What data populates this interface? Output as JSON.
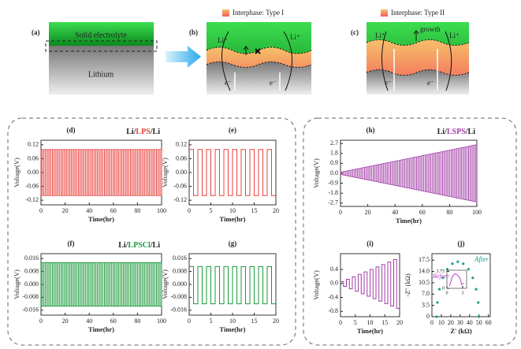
{
  "schematic": {
    "a": {
      "label": "(a)",
      "top": "Solid electrolyte",
      "bottom": "Lithium"
    },
    "b": {
      "label": "(b)",
      "legend": "Interphase: Type I",
      "ion_left": "Li⁺",
      "ion_right": "Li⁺",
      "electron_left": "e⁻",
      "electron_right": "e⁻"
    },
    "c": {
      "label": "(c)",
      "legend": "Interphase: Type II",
      "ion_left": "Li⁺",
      "ion_right": "Li⁺",
      "growth": "growth",
      "electron_left": "e⁻",
      "electron_right": "e⁻"
    }
  },
  "chart_data": [
    {
      "type": "area",
      "panel": "(d)",
      "title_parts": [
        "Li/",
        "LPS",
        "/Li"
      ],
      "title_colors": [
        "#222222",
        "#e8403c",
        "#222222"
      ],
      "x_label": "Time(hr)",
      "y_label": "Voltage(V)",
      "color": "#e8403c",
      "x": [
        0,
        20,
        40,
        60,
        80,
        100
      ],
      "upper": [
        0.1,
        0.1,
        0.1,
        0.1,
        0.1,
        0.1
      ],
      "lower": [
        -0.1,
        -0.1,
        -0.1,
        -0.1,
        -0.1,
        -0.1
      ],
      "xlim": [
        0,
        100
      ],
      "ylim": [
        -0.14,
        0.14
      ],
      "xticks": [
        0,
        20,
        40,
        60,
        80,
        100
      ],
      "yticks": [
        0.12,
        0.06,
        {
          "value": 0,
          "label": "0.00"
        },
        -0.06,
        -0.12
      ]
    },
    {
      "type": "line",
      "step": true,
      "panel": "(e)",
      "x_label": "Time(hr)",
      "y_label": "Voltage(V)",
      "color": "#e8403c",
      "x": [
        0,
        1,
        2,
        3,
        4,
        5,
        6,
        7,
        8,
        9,
        10,
        11,
        12,
        13,
        14,
        15,
        16,
        17,
        18,
        19
      ],
      "values": [
        0.1,
        -0.1,
        0.1,
        -0.1,
        0.1,
        -0.1,
        0.1,
        -0.1,
        0.1,
        -0.1,
        0.1,
        -0.1,
        0.1,
        -0.1,
        0.1,
        -0.1,
        0.1,
        -0.1,
        0.1,
        -0.1
      ],
      "xlim": [
        0,
        20
      ],
      "ylim": [
        -0.14,
        0.14
      ],
      "xticks": [
        0,
        5,
        10,
        15,
        20
      ],
      "yticks": [
        0.12,
        0.06,
        {
          "value": 0,
          "label": "0.00"
        },
        -0.06,
        -0.12
      ]
    },
    {
      "type": "area",
      "panel": "(f)",
      "title_parts": [
        "Li/",
        "LPSCl",
        "/Li"
      ],
      "title_colors": [
        "#222222",
        "#1a9a3a",
        "#222222"
      ],
      "x_label": "Time(hr)",
      "y_label": "Voltage(V)",
      "color": "#1a9a3a",
      "x": [
        0,
        20,
        40,
        60,
        80,
        100
      ],
      "upper": [
        0.0135,
        0.0135,
        0.0135,
        0.0135,
        0.0135,
        0.0135
      ],
      "lower": [
        -0.0135,
        -0.0135,
        -0.0135,
        -0.0135,
        -0.0135,
        -0.0135
      ],
      "xlim": [
        0,
        100
      ],
      "ylim": [
        -0.019,
        0.019
      ],
      "xticks": [
        0,
        20,
        40,
        60,
        80,
        100
      ],
      "yticks": [
        0.016,
        0.008,
        {
          "value": 0,
          "label": "0.000"
        },
        -0.008,
        -0.016
      ]
    },
    {
      "type": "line",
      "step": true,
      "panel": "(g)",
      "x_label": "Time(hr)",
      "y_label": "Voltage(V)",
      "color": "#1a9a3a",
      "x": [
        0,
        1,
        2,
        3,
        4,
        5,
        6,
        7,
        8,
        9,
        10,
        11,
        12,
        13,
        14,
        15,
        16,
        17,
        18,
        19
      ],
      "values": [
        0.011,
        -0.012,
        0.011,
        -0.012,
        0.011,
        -0.012,
        0.011,
        -0.012,
        0.011,
        -0.012,
        0.011,
        -0.012,
        0.011,
        -0.012,
        0.011,
        -0.012,
        0.011,
        -0.012,
        0.011,
        -0.012
      ],
      "xlim": [
        0,
        20
      ],
      "ylim": [
        -0.019,
        0.019
      ],
      "xticks": [
        0,
        5,
        10,
        15,
        20
      ],
      "yticks": [
        0.016,
        0.008,
        {
          "value": 0,
          "label": "0.000"
        },
        -0.008,
        -0.016
      ]
    },
    {
      "type": "area",
      "panel": "(h)",
      "title_parts": [
        "Li/",
        "LSPS",
        "/Li"
      ],
      "title_colors": [
        "#222222",
        "#a23ca6",
        "#222222"
      ],
      "x_label": "Time(hr)",
      "y_label": "Voltage(V)",
      "color": "#a23ca6",
      "x": [
        0,
        20,
        40,
        60,
        80,
        100
      ],
      "upper": [
        0.1,
        0.6,
        1.1,
        1.6,
        2.1,
        2.6
      ],
      "lower": [
        -0.1,
        -0.6,
        -1.1,
        -1.6,
        -2.1,
        -2.6
      ],
      "xlim": [
        0,
        100
      ],
      "ylim": [
        -3,
        3
      ],
      "xticks": [
        0,
        20,
        40,
        60,
        80,
        100
      ],
      "yticks": [
        2.7,
        1.8,
        0.9,
        {
          "value": 0,
          "label": "0.0"
        },
        -0.9,
        -1.8,
        -2.7
      ]
    },
    {
      "type": "line",
      "step": true,
      "panel": "(i)",
      "x_label": "Time(hr)",
      "y_label": "Voltage(V)",
      "color": "#a23ca6",
      "x": [
        0,
        1,
        2,
        3,
        4,
        5,
        6,
        7,
        8,
        9,
        10,
        11,
        12,
        13,
        14,
        15,
        16,
        17,
        18,
        19
      ],
      "values": [
        0.05,
        -0.085,
        0.12,
        -0.155,
        0.19,
        -0.225,
        0.26,
        -0.295,
        0.33,
        -0.365,
        0.4,
        -0.435,
        0.47,
        -0.505,
        0.54,
        -0.575,
        0.61,
        -0.645,
        0.68,
        -0.715
      ],
      "xlim": [
        0,
        20
      ],
      "ylim": [
        -0.95,
        0.85
      ],
      "xticks": [
        0,
        5,
        10,
        15,
        20
      ],
      "yticks": [
        0.4,
        {
          "value": 0,
          "label": "0.0"
        },
        -0.4,
        -0.8
      ]
    },
    {
      "type": "scatter",
      "panel": "(j)",
      "x_label": "Z' (kΩ)",
      "y_label": "-Z'' (kΩ)",
      "series": [
        {
          "name": "After",
          "color": "#1aa090",
          "x": [
            5.0,
            5.8,
            8.0,
            11.6,
            16.3,
            21.7,
            27.5,
            33.3,
            38.8,
            43.4,
            47.0,
            49.2,
            50.0
          ],
          "values": [
            0,
            4.4,
            8.5,
            12.0,
            14.7,
            16.4,
            17.0,
            16.4,
            14.7,
            12.0,
            8.5,
            4.4,
            0
          ]
        }
      ],
      "xlim": [
        0,
        62
      ],
      "ylim": [
        0,
        19.5
      ],
      "xticks": [
        0,
        10,
        20,
        30,
        40,
        50,
        60
      ],
      "yticks": [
        0,
        3.5,
        {
          "value": 7,
          "label": "7.0"
        },
        10.5,
        {
          "value": 14,
          "label": "14.0"
        },
        17.5
      ]
    },
    {
      "type": "line",
      "series": [
        {
          "name": "Before",
          "color": "#c040c0",
          "x": [
            0.5,
            1,
            1.5,
            2,
            2.5,
            2.8,
            3.2
          ],
          "values": [
            0.5,
            2.5,
            3.2,
            3.0,
            2.2,
            0.8,
            1.2
          ]
        }
      ],
      "xlim": [
        0,
        3.75
      ],
      "ylim": [
        0,
        4
      ],
      "xticks": [
        0,
        3
      ],
      "yticks": [
        0,
        3.75
      ]
    }
  ]
}
